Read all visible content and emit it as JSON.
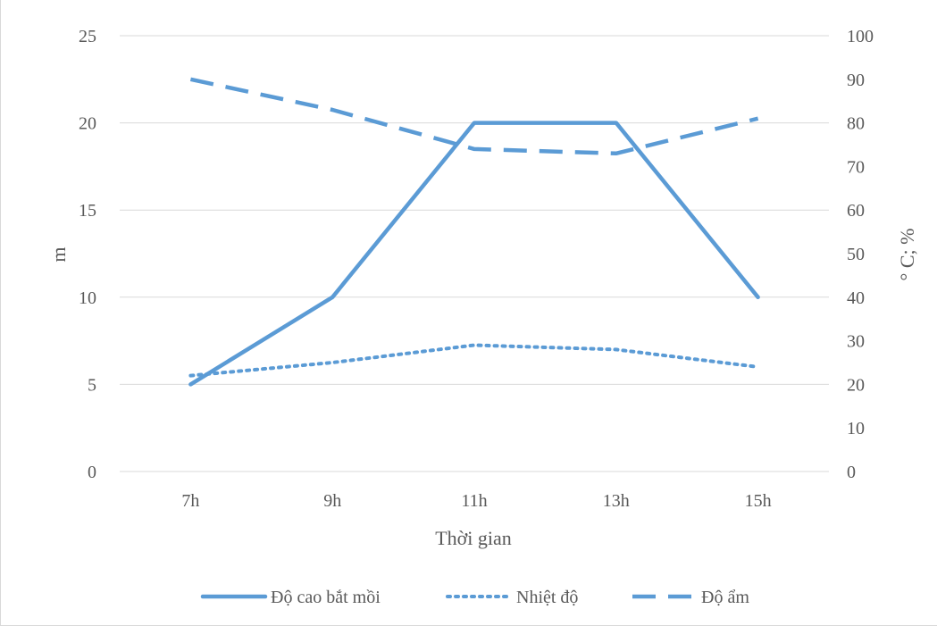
{
  "chart_data": {
    "type": "line",
    "categories": [
      "7h",
      "9h",
      "11h",
      "13h",
      "15h"
    ],
    "xlabel": "Thời gian",
    "ylabel_left": "m",
    "ylabel_right": "° C; %",
    "ylim_left": [
      0,
      25
    ],
    "ylim_right": [
      0,
      100
    ],
    "yticks_left": [
      "0",
      "5",
      "10",
      "15",
      "20",
      "25"
    ],
    "yticks_right": [
      "0",
      "10",
      "20",
      "30",
      "40",
      "50",
      "60",
      "70",
      "80",
      "90",
      "100"
    ],
    "grid": true,
    "legend_position": "bottom",
    "series": [
      {
        "name": "Độ cao bắt mồi",
        "axis": "left",
        "style": "solid",
        "color": "#5b9bd5",
        "values": [
          5,
          10,
          20,
          20,
          10
        ]
      },
      {
        "name": "Nhiệt độ",
        "axis": "right",
        "style": "dotted",
        "color": "#5b9bd5",
        "values": [
          22,
          25,
          29,
          28,
          24
        ]
      },
      {
        "name": "Độ ẩm",
        "axis": "right",
        "style": "dashed",
        "color": "#5b9bd5",
        "values": [
          90,
          83,
          74,
          73,
          81
        ]
      }
    ]
  }
}
